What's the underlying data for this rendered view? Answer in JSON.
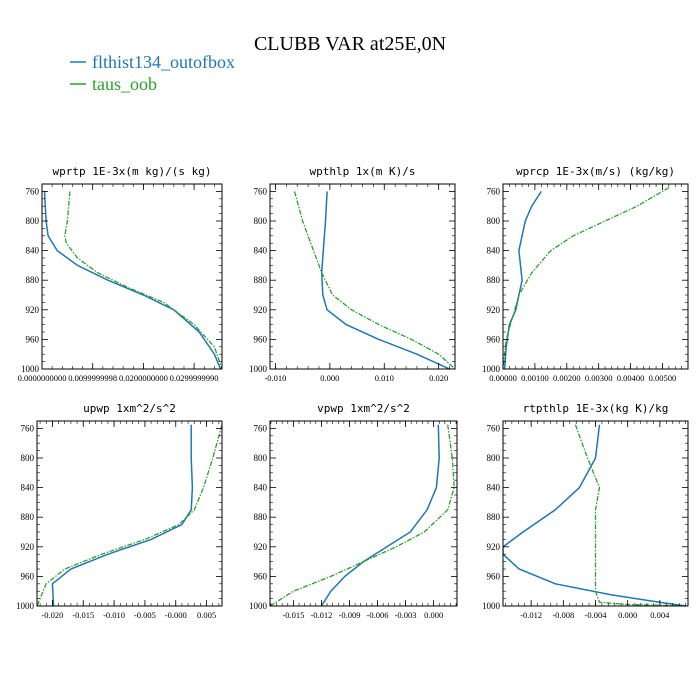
{
  "figure": {
    "title": "CLUBB VAR at25E,0N",
    "legend": [
      {
        "label": "flthist134_outofbox",
        "color": "#1f77b4"
      },
      {
        "label": "taus_oob",
        "color": "#2ca02c"
      }
    ]
  },
  "chart_data": [
    {
      "type": "line",
      "title": "wprtp   1E-3x(m kg)/(s kg)",
      "xlim": [
        0.0,
        0.0355
      ],
      "ylim": [
        1000,
        750
      ],
      "y_scale": "linear",
      "x_ticks": [
        0.0,
        0.01,
        0.02,
        0.03
      ],
      "x_tick_labels": [
        "0.0000000000",
        "0.0099999998",
        "0.0200000000",
        "0.0299999990"
      ],
      "y_ticks": [
        760,
        800,
        840,
        880,
        920,
        960,
        1000
      ],
      "y_tick_labels": [
        "760",
        "800",
        "840",
        "880",
        "920",
        "960",
        "1000"
      ],
      "series": [
        {
          "name": "flthist134_outofbox",
          "color": "#1f77b4",
          "dashed": false,
          "x": [
            0.0005,
            0.0008,
            0.0012,
            0.003,
            0.007,
            0.013,
            0.02,
            0.026,
            0.031,
            0.034,
            0.0352
          ],
          "y": [
            760,
            800,
            820,
            840,
            860,
            880,
            900,
            920,
            950,
            980,
            1000
          ]
        },
        {
          "name": "taus_oob",
          "color": "#2ca02c",
          "dashed": true,
          "x": [
            0.0055,
            0.005,
            0.0045,
            0.0048,
            0.007,
            0.011,
            0.017,
            0.024,
            0.03,
            0.034,
            0.0355
          ],
          "y": [
            760,
            800,
            820,
            830,
            850,
            870,
            890,
            910,
            940,
            970,
            1000
          ]
        }
      ]
    },
    {
      "type": "line",
      "title": "wpthlp   1x(m K)/s",
      "xlim": [
        -0.011,
        0.023
      ],
      "ylim": [
        1000,
        750
      ],
      "y_scale": "linear",
      "x_ticks": [
        -0.01,
        0.0,
        0.01,
        0.02
      ],
      "x_tick_labels": [
        "-0.010",
        "0.000",
        "0.010",
        "0.020"
      ],
      "y_ticks": [
        760,
        800,
        840,
        880,
        920,
        960,
        1000
      ],
      "y_tick_labels": [
        "760",
        "800",
        "840",
        "880",
        "920",
        "960",
        "1000"
      ],
      "series": [
        {
          "name": "flthist134_outofbox",
          "color": "#1f77b4",
          "dashed": false,
          "x": [
            -0.0005,
            -0.0008,
            -0.0012,
            -0.0015,
            -0.0013,
            -0.0005,
            0.003,
            0.009,
            0.016,
            0.022
          ],
          "y": [
            760,
            800,
            840,
            870,
            900,
            920,
            940,
            960,
            980,
            1000
          ]
        },
        {
          "name": "taus_oob",
          "color": "#2ca02c",
          "dashed": true,
          "x": [
            -0.0065,
            -0.005,
            -0.003,
            -0.0015,
            0.0005,
            0.004,
            0.009,
            0.015,
            0.02,
            0.023
          ],
          "y": [
            760,
            800,
            840,
            870,
            900,
            920,
            940,
            960,
            980,
            1000
          ]
        }
      ]
    },
    {
      "type": "line",
      "title": "wprcp   1E-3x(m/s) (kg/kg)",
      "xlim": [
        0.0,
        0.0058
      ],
      "ylim": [
        1000,
        750
      ],
      "y_scale": "linear",
      "x_ticks": [
        0.0,
        0.001,
        0.002,
        0.003,
        0.004,
        0.005
      ],
      "x_tick_labels": [
        "0.00000",
        "0.00100",
        "0.00200",
        "0.00300",
        "0.00400",
        "0.00500"
      ],
      "y_ticks": [
        760,
        800,
        840,
        880,
        920,
        960,
        1000
      ],
      "y_tick_labels": [
        "760",
        "800",
        "840",
        "880",
        "920",
        "960",
        "1000"
      ],
      "series": [
        {
          "name": "flthist134_outofbox",
          "color": "#1f77b4",
          "dashed": false,
          "x": [
            0.0012,
            0.0009,
            0.0007,
            0.0005,
            0.0006,
            0.0005,
            0.0004,
            0.0002,
            0.0001,
            5e-05
          ],
          "y": [
            760,
            780,
            800,
            840,
            880,
            900,
            920,
            940,
            970,
            1000
          ]
        },
        {
          "name": "taus_oob",
          "color": "#2ca02c",
          "dashed": true,
          "x": [
            0.0052,
            0.0042,
            0.0032,
            0.0022,
            0.0015,
            0.0009,
            0.0005,
            0.0003,
            0.0001,
            0.0
          ],
          "y": [
            755,
            780,
            800,
            820,
            840,
            870,
            900,
            930,
            960,
            1000
          ]
        }
      ]
    },
    {
      "type": "line",
      "title": "upwp   1xm^2/s^2",
      "xlim": [
        -0.0225,
        0.0075
      ],
      "ylim": [
        1000,
        750
      ],
      "y_scale": "linear",
      "x_ticks": [
        -0.02,
        -0.015,
        -0.01,
        -0.005,
        0.0,
        0.005
      ],
      "x_tick_labels": [
        "-0.020",
        "-0.015",
        "-0.010",
        "-0.005",
        "-0.000",
        "0.005"
      ],
      "y_ticks": [
        760,
        800,
        840,
        880,
        920,
        960,
        1000
      ],
      "y_tick_labels": [
        "760",
        "800",
        "840",
        "880",
        "920",
        "960",
        "1000"
      ],
      "series": [
        {
          "name": "flthist134_outofbox",
          "color": "#1f77b4",
          "dashed": false,
          "x": [
            0.0025,
            0.0025,
            0.0027,
            0.0025,
            0.001,
            -0.004,
            -0.011,
            -0.017,
            -0.02,
            -0.0198
          ],
          "y": [
            755,
            800,
            840,
            870,
            890,
            910,
            930,
            950,
            970,
            1000
          ]
        },
        {
          "name": "taus_oob",
          "color": "#2ca02c",
          "dashed": true,
          "x": [
            0.0075,
            0.006,
            0.0045,
            0.003,
            0.0005,
            -0.005,
            -0.012,
            -0.018,
            -0.021,
            -0.0225
          ],
          "y": [
            755,
            800,
            840,
            870,
            890,
            910,
            930,
            950,
            970,
            1000
          ]
        }
      ]
    },
    {
      "type": "line",
      "title": "vpwp   1xm^2/s^2",
      "xlim": [
        -0.0175,
        0.0025
      ],
      "ylim": [
        1000,
        750
      ],
      "y_scale": "linear",
      "x_ticks": [
        -0.015,
        -0.012,
        -0.009,
        -0.006,
        -0.003,
        0.0
      ],
      "x_tick_labels": [
        "-0.015",
        "-0.012",
        "-0.009",
        "-0.006",
        "-0.003",
        "0.000"
      ],
      "y_ticks": [
        760,
        800,
        840,
        880,
        920,
        960,
        1000
      ],
      "y_tick_labels": [
        "760",
        "800",
        "840",
        "880",
        "920",
        "960",
        "1000"
      ],
      "series": [
        {
          "name": "flthist134_outofbox",
          "color": "#1f77b4",
          "dashed": false,
          "x": [
            0.0005,
            0.0006,
            0.0003,
            -0.0007,
            -0.0025,
            -0.005,
            -0.0075,
            -0.0095,
            -0.011,
            -0.012
          ],
          "y": [
            755,
            800,
            840,
            870,
            900,
            920,
            940,
            960,
            980,
            1000
          ]
        },
        {
          "name": "taus_oob",
          "color": "#2ca02c",
          "dashed": true,
          "x": [
            0.0015,
            0.002,
            0.0022,
            0.0015,
            -0.001,
            -0.004,
            -0.0075,
            -0.011,
            -0.015,
            -0.0175
          ],
          "y": [
            755,
            800,
            840,
            870,
            900,
            920,
            940,
            960,
            980,
            1000
          ]
        }
      ]
    },
    {
      "type": "line",
      "title": "rtpthlp   1E-3x(kg K)/kg",
      "xlim": [
        -0.0155,
        0.0075
      ],
      "ylim": [
        1000,
        750
      ],
      "y_scale": "linear",
      "x_ticks": [
        -0.012,
        -0.008,
        -0.004,
        0.0,
        0.004
      ],
      "x_tick_labels": [
        "-0.012",
        "-0.008",
        "-0.004",
        "0.000",
        "0.004"
      ],
      "y_ticks": [
        760,
        800,
        840,
        880,
        920,
        960,
        1000
      ],
      "y_tick_labels": [
        "760",
        "800",
        "840",
        "880",
        "920",
        "960",
        "1000"
      ],
      "series": [
        {
          "name": "flthist134_outofbox",
          "color": "#1f77b4",
          "dashed": false,
          "x": [
            -0.0035,
            -0.004,
            -0.006,
            -0.009,
            -0.013,
            -0.0155,
            -0.0155,
            -0.0135,
            -0.009,
            -0.002,
            0.004,
            0.0072
          ],
          "y": [
            755,
            800,
            840,
            870,
            900,
            920,
            930,
            950,
            970,
            985,
            995,
            1000
          ]
        },
        {
          "name": "taus_oob",
          "color": "#2ca02c",
          "dashed": true,
          "x": [
            -0.0065,
            -0.005,
            -0.0035,
            -0.004,
            -0.004,
            -0.004,
            -0.004,
            -0.004,
            -0.0035,
            0.0,
            0.0075
          ],
          "y": [
            755,
            800,
            840,
            870,
            900,
            920,
            950,
            980,
            995,
            998,
            1000
          ]
        }
      ]
    }
  ]
}
